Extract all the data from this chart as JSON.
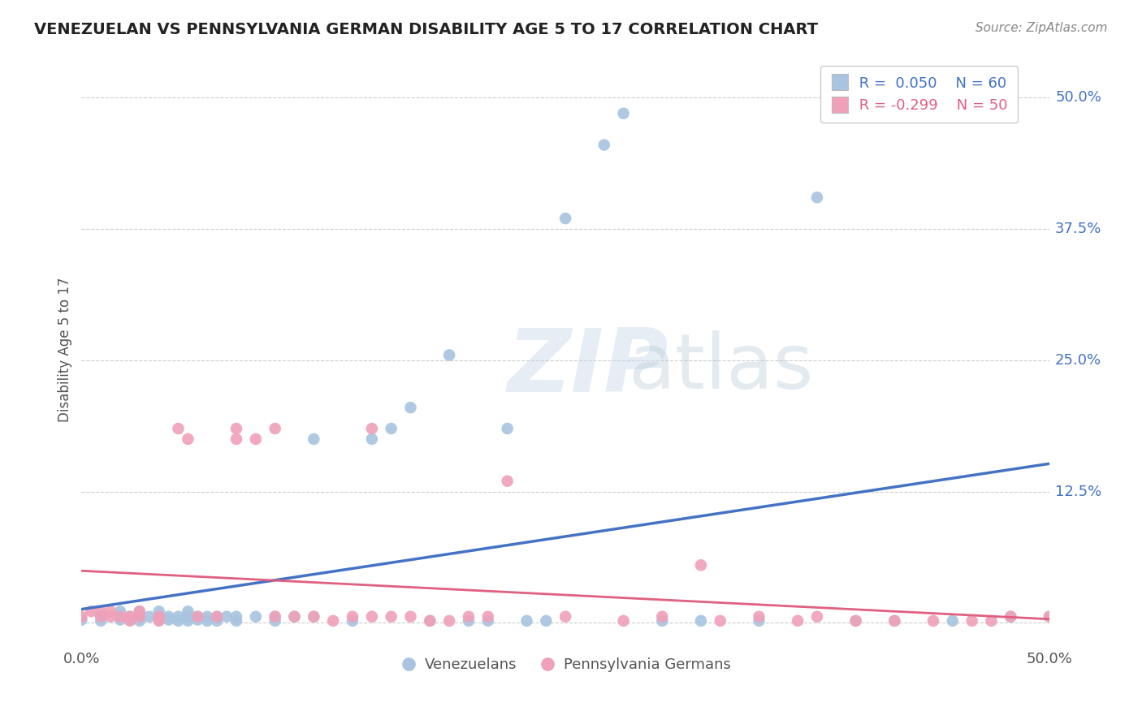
{
  "title": "VENEZUELAN VS PENNSYLVANIA GERMAN DISABILITY AGE 5 TO 17 CORRELATION CHART",
  "source": "Source: ZipAtlas.com",
  "ylabel": "Disability Age 5 to 17",
  "xlim": [
    0.0,
    0.5
  ],
  "ylim": [
    -0.02,
    0.54
  ],
  "grid_color": "#cccccc",
  "background_color": "#ffffff",
  "blue_color": "#a8c4e0",
  "pink_color": "#f0a0b8",
  "blue_line_color": "#4472c4",
  "pink_line_color": "#e06080",
  "blue_R": 0.05,
  "blue_N": 60,
  "pink_R": -0.299,
  "pink_N": 50,
  "legend_label_blue": "Venezuelans",
  "legend_label_pink": "Pennsylvania Germans",
  "blue_scatter_x": [
    0.0,
    0.01,
    0.01,
    0.02,
    0.02,
    0.02,
    0.025,
    0.025,
    0.03,
    0.03,
    0.03,
    0.035,
    0.04,
    0.04,
    0.04,
    0.045,
    0.045,
    0.05,
    0.05,
    0.055,
    0.055,
    0.055,
    0.06,
    0.06,
    0.065,
    0.065,
    0.07,
    0.07,
    0.075,
    0.08,
    0.08,
    0.09,
    0.1,
    0.1,
    0.11,
    0.12,
    0.12,
    0.14,
    0.15,
    0.16,
    0.17,
    0.18,
    0.19,
    0.2,
    0.21,
    0.22,
    0.23,
    0.24,
    0.25,
    0.27,
    0.28,
    0.3,
    0.32,
    0.35,
    0.38,
    0.4,
    0.42,
    0.45,
    0.48,
    0.5
  ],
  "blue_scatter_y": [
    0.003,
    0.002,
    0.006,
    0.003,
    0.006,
    0.011,
    0.003,
    0.006,
    0.002,
    0.006,
    0.011,
    0.006,
    0.003,
    0.006,
    0.011,
    0.003,
    0.006,
    0.002,
    0.006,
    0.002,
    0.006,
    0.011,
    0.003,
    0.006,
    0.002,
    0.006,
    0.002,
    0.006,
    0.006,
    0.002,
    0.006,
    0.006,
    0.002,
    0.006,
    0.006,
    0.006,
    0.175,
    0.002,
    0.175,
    0.185,
    0.205,
    0.002,
    0.255,
    0.002,
    0.002,
    0.185,
    0.002,
    0.002,
    0.385,
    0.455,
    0.485,
    0.002,
    0.002,
    0.002,
    0.405,
    0.002,
    0.002,
    0.002,
    0.006,
    0.006
  ],
  "pink_scatter_x": [
    0.0,
    0.005,
    0.01,
    0.01,
    0.015,
    0.015,
    0.02,
    0.025,
    0.025,
    0.03,
    0.03,
    0.04,
    0.04,
    0.05,
    0.055,
    0.06,
    0.07,
    0.08,
    0.08,
    0.09,
    0.1,
    0.1,
    0.11,
    0.12,
    0.13,
    0.14,
    0.15,
    0.15,
    0.16,
    0.17,
    0.18,
    0.19,
    0.2,
    0.21,
    0.22,
    0.25,
    0.28,
    0.3,
    0.32,
    0.33,
    0.35,
    0.37,
    0.38,
    0.4,
    0.42,
    0.44,
    0.46,
    0.47,
    0.48,
    0.5
  ],
  "pink_scatter_y": [
    0.006,
    0.011,
    0.006,
    0.011,
    0.006,
    0.011,
    0.006,
    0.002,
    0.006,
    0.006,
    0.011,
    0.002,
    0.006,
    0.185,
    0.175,
    0.006,
    0.006,
    0.175,
    0.185,
    0.175,
    0.006,
    0.185,
    0.006,
    0.006,
    0.002,
    0.006,
    0.006,
    0.185,
    0.006,
    0.006,
    0.002,
    0.002,
    0.006,
    0.006,
    0.135,
    0.006,
    0.002,
    0.006,
    0.055,
    0.002,
    0.006,
    0.002,
    0.006,
    0.002,
    0.002,
    0.002,
    0.002,
    0.002,
    0.006,
    0.006
  ]
}
